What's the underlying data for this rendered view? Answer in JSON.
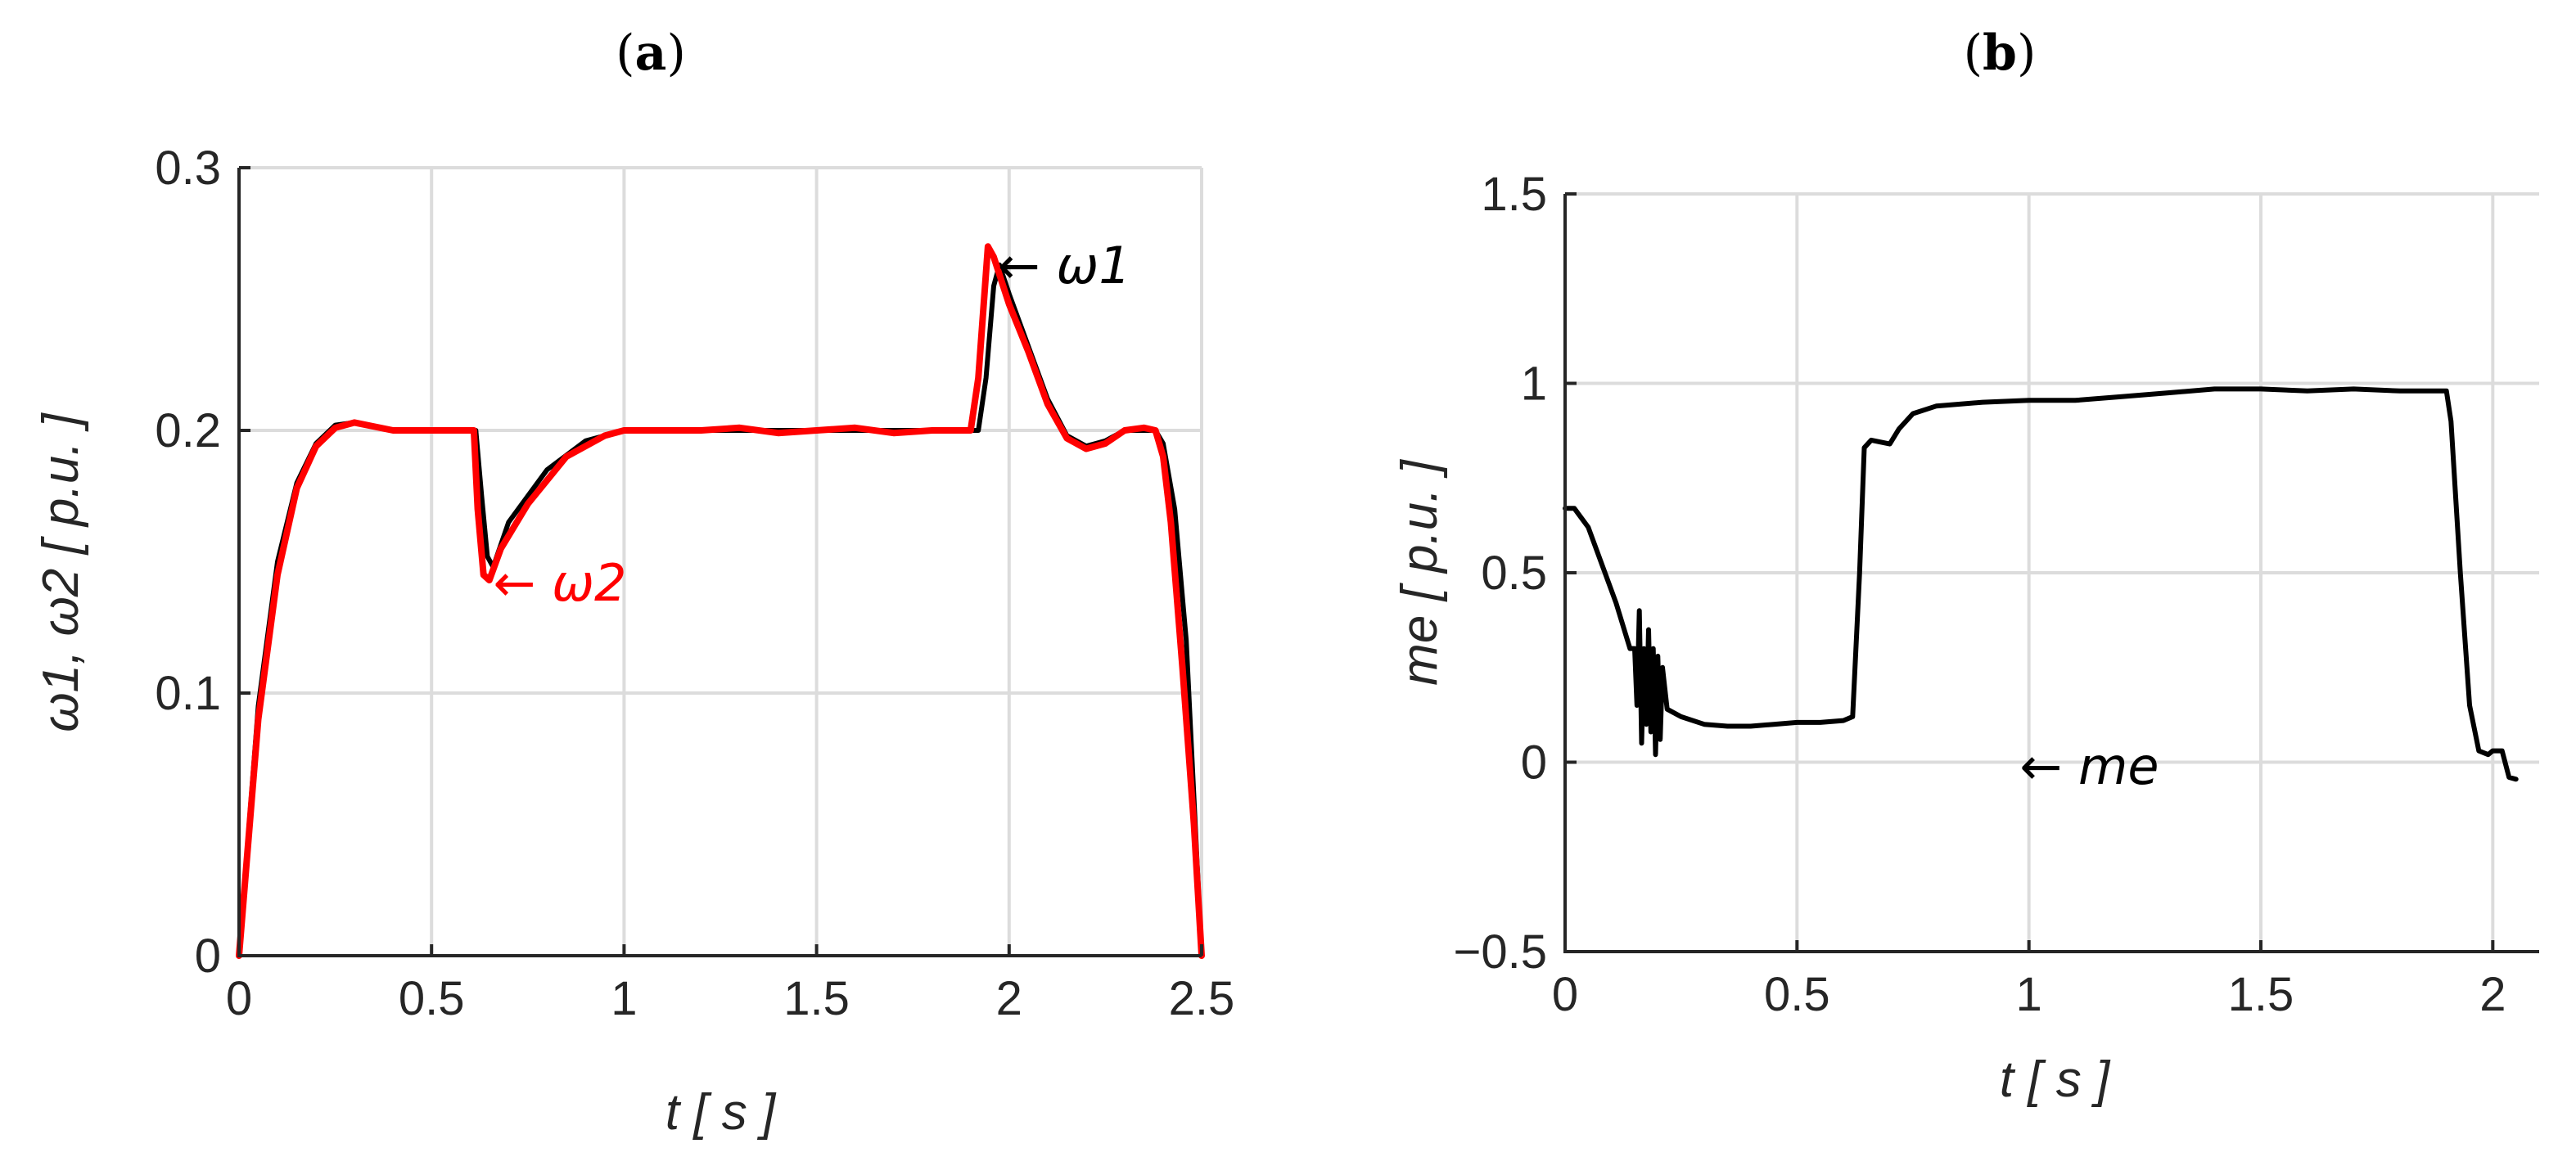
{
  "chart_data": [
    {
      "type": "line",
      "panel_label": "(a)",
      "panel_label_text": "a",
      "xlabel": "t [ s ]",
      "ylabel": "ω1, ω2 [ p.u. ]",
      "xlim": [
        0,
        2.5
      ],
      "ylim": [
        0,
        0.3
      ],
      "xticks": [
        "0",
        "0.5",
        "1",
        "1.5",
        "2",
        "2.5"
      ],
      "yticks": [
        "0",
        "0.1",
        "0.2",
        "0.3"
      ],
      "grid": true,
      "colors": {
        "omega1": "#000000",
        "omega2": "#ff0000"
      },
      "annotations": [
        {
          "text": "← ω1",
          "x": 1.97,
          "y": 0.263,
          "color": "#000000"
        },
        {
          "text": "← ω2",
          "x": 0.66,
          "y": 0.142,
          "color": "#ff0000"
        }
      ],
      "series": [
        {
          "name": "ω1",
          "color": "#000000",
          "points": [
            [
              0,
              0
            ],
            [
              0.05,
              0.095
            ],
            [
              0.1,
              0.15
            ],
            [
              0.15,
              0.18
            ],
            [
              0.2,
              0.195
            ],
            [
              0.25,
              0.202
            ],
            [
              0.3,
              0.203
            ],
            [
              0.4,
              0.2
            ],
            [
              0.5,
              0.2
            ],
            [
              0.6,
              0.2
            ],
            [
              0.615,
              0.2
            ],
            [
              0.63,
              0.175
            ],
            [
              0.645,
              0.152
            ],
            [
              0.66,
              0.148
            ],
            [
              0.7,
              0.165
            ],
            [
              0.8,
              0.185
            ],
            [
              0.9,
              0.196
            ],
            [
              1.0,
              0.2
            ],
            [
              1.2,
              0.2
            ],
            [
              1.4,
              0.2
            ],
            [
              1.6,
              0.2
            ],
            [
              1.8,
              0.2
            ],
            [
              1.9,
              0.2
            ],
            [
              1.92,
              0.2
            ],
            [
              1.94,
              0.22
            ],
            [
              1.96,
              0.255
            ],
            [
              1.975,
              0.263
            ],
            [
              2.0,
              0.252
            ],
            [
              2.05,
              0.232
            ],
            [
              2.1,
              0.212
            ],
            [
              2.15,
              0.198
            ],
            [
              2.2,
              0.194
            ],
            [
              2.25,
              0.196
            ],
            [
              2.3,
              0.2
            ],
            [
              2.35,
              0.2
            ],
            [
              2.38,
              0.2
            ],
            [
              2.4,
              0.195
            ],
            [
              2.43,
              0.17
            ],
            [
              2.46,
              0.12
            ],
            [
              2.48,
              0.06
            ],
            [
              2.5,
              0
            ]
          ]
        },
        {
          "name": "ω2",
          "color": "#ff0000",
          "points": [
            [
              0,
              0
            ],
            [
              0.05,
              0.09
            ],
            [
              0.1,
              0.145
            ],
            [
              0.15,
              0.178
            ],
            [
              0.2,
              0.194
            ],
            [
              0.25,
              0.201
            ],
            [
              0.3,
              0.203
            ],
            [
              0.4,
              0.2
            ],
            [
              0.5,
              0.2
            ],
            [
              0.6,
              0.2
            ],
            [
              0.61,
              0.2
            ],
            [
              0.62,
              0.17
            ],
            [
              0.635,
              0.145
            ],
            [
              0.65,
              0.143
            ],
            [
              0.68,
              0.155
            ],
            [
              0.75,
              0.172
            ],
            [
              0.85,
              0.19
            ],
            [
              0.95,
              0.198
            ],
            [
              1.0,
              0.2
            ],
            [
              1.2,
              0.2
            ],
            [
              1.3,
              0.201
            ],
            [
              1.4,
              0.199
            ],
            [
              1.5,
              0.2
            ],
            [
              1.6,
              0.201
            ],
            [
              1.7,
              0.199
            ],
            [
              1.8,
              0.2
            ],
            [
              1.9,
              0.2
            ],
            [
              1.92,
              0.22
            ],
            [
              1.945,
              0.27
            ],
            [
              1.96,
              0.266
            ],
            [
              2.0,
              0.248
            ],
            [
              2.05,
              0.23
            ],
            [
              2.1,
              0.21
            ],
            [
              2.15,
              0.197
            ],
            [
              2.2,
              0.193
            ],
            [
              2.25,
              0.195
            ],
            [
              2.3,
              0.2
            ],
            [
              2.35,
              0.201
            ],
            [
              2.38,
              0.2
            ],
            [
              2.4,
              0.19
            ],
            [
              2.42,
              0.165
            ],
            [
              2.45,
              0.11
            ],
            [
              2.48,
              0.05
            ],
            [
              2.5,
              0
            ]
          ]
        }
      ]
    },
    {
      "type": "line",
      "panel_label": "(b)",
      "panel_label_text": "b",
      "xlabel": "t [ s ]",
      "ylabel": "me [ p.u. ]",
      "xlim": [
        0,
        2.1
      ],
      "ylim": [
        -0.5,
        1.5
      ],
      "xticks": [
        "0",
        "0.5",
        "1",
        "1.5",
        "2"
      ],
      "yticks": [
        "−0.5",
        "0",
        "0.5",
        "1",
        "1.5"
      ],
      "grid": true,
      "annotations": [
        {
          "text": "← me",
          "x": 0.98,
          "y": -0.01,
          "color": "#000000"
        }
      ],
      "series": [
        {
          "name": "me",
          "color": "#000000",
          "points": [
            [
              0,
              0.67
            ],
            [
              0.02,
              0.67
            ],
            [
              0.05,
              0.62
            ],
            [
              0.08,
              0.52
            ],
            [
              0.11,
              0.42
            ],
            [
              0.14,
              0.3
            ],
            [
              0.15,
              0.3
            ],
            [
              0.155,
              0.15
            ],
            [
              0.16,
              0.4
            ],
            [
              0.165,
              0.05
            ],
            [
              0.17,
              0.3
            ],
            [
              0.175,
              0.1
            ],
            [
              0.18,
              0.35
            ],
            [
              0.185,
              0.08
            ],
            [
              0.19,
              0.3
            ],
            [
              0.195,
              0.02
            ],
            [
              0.2,
              0.28
            ],
            [
              0.205,
              0.06
            ],
            [
              0.21,
              0.25
            ],
            [
              0.22,
              0.14
            ],
            [
              0.25,
              0.12
            ],
            [
              0.3,
              0.1
            ],
            [
              0.35,
              0.095
            ],
            [
              0.4,
              0.095
            ],
            [
              0.45,
              0.1
            ],
            [
              0.5,
              0.105
            ],
            [
              0.55,
              0.105
            ],
            [
              0.6,
              0.11
            ],
            [
              0.62,
              0.12
            ],
            [
              0.635,
              0.5
            ],
            [
              0.645,
              0.83
            ],
            [
              0.66,
              0.85
            ],
            [
              0.7,
              0.84
            ],
            [
              0.72,
              0.88
            ],
            [
              0.75,
              0.92
            ],
            [
              0.8,
              0.94
            ],
            [
              0.9,
              0.95
            ],
            [
              1.0,
              0.955
            ],
            [
              1.1,
              0.955
            ],
            [
              1.2,
              0.965
            ],
            [
              1.3,
              0.975
            ],
            [
              1.4,
              0.985
            ],
            [
              1.5,
              0.985
            ],
            [
              1.6,
              0.98
            ],
            [
              1.7,
              0.985
            ],
            [
              1.8,
              0.98
            ],
            [
              1.9,
              0.98
            ],
            [
              1.91,
              0.9
            ],
            [
              1.93,
              0.5
            ],
            [
              1.95,
              0.15
            ],
            [
              1.97,
              0.03
            ],
            [
              1.99,
              0.02
            ],
            [
              2.0,
              0.03
            ],
            [
              2.02,
              0.03
            ],
            [
              2.035,
              -0.04
            ],
            [
              2.05,
              -0.045
            ]
          ]
        }
      ]
    }
  ]
}
